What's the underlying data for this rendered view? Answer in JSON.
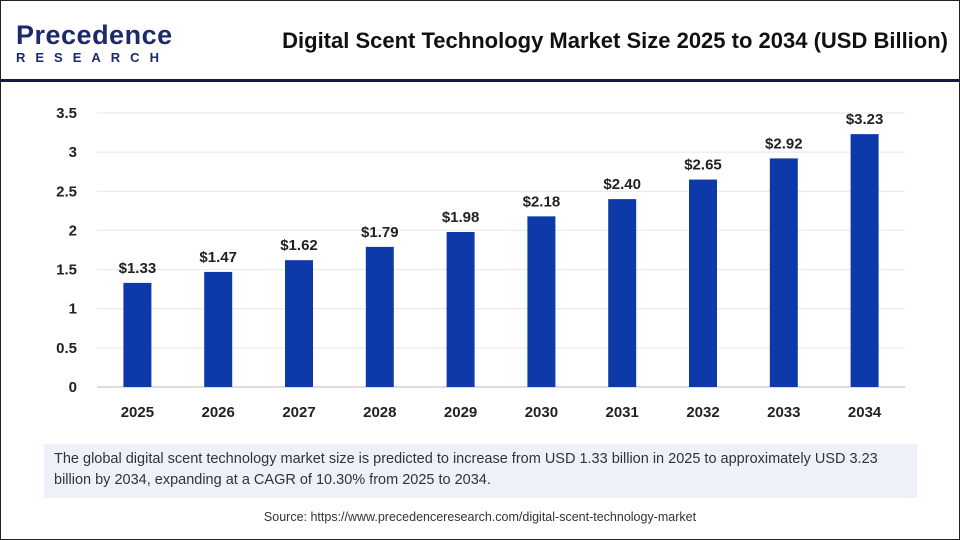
{
  "header": {
    "logo_text_1": "Precedence",
    "logo_text_2": "RESEARCH",
    "title": "Digital Scent Technology Market Size 2025 to 2034 (USD Billion)"
  },
  "chart_data": {
    "type": "bar",
    "title": "Digital Scent Technology Market Size 2025 to 2034 (USD Billion)",
    "categories": [
      "2025",
      "2026",
      "2027",
      "2028",
      "2029",
      "2030",
      "2031",
      "2032",
      "2033",
      "2034"
    ],
    "values": [
      1.33,
      1.47,
      1.62,
      1.79,
      1.98,
      2.18,
      2.4,
      2.65,
      2.92,
      3.23
    ],
    "data_labels": [
      "$1.33",
      "$1.47",
      "$1.62",
      "$1.79",
      "$1.98",
      "$2.18",
      "$2.40",
      "$2.65",
      "$2.92",
      "$3.23"
    ],
    "yticks": [
      "0",
      "0.5",
      "1",
      "1.5",
      "2",
      "2.5",
      "3",
      "3.5"
    ],
    "ylim": [
      0,
      3.5
    ],
    "bar_color": "#0e3aa9",
    "grid": true,
    "xlabel": "",
    "ylabel": ""
  },
  "description": "The global digital scent technology market size is predicted to increase from USD 1.33 billion in 2025 to approximately USD 3.23 billion by 2034, expanding at a CAGR of 10.30% from 2025 to 2034.",
  "source": "Source: https://www.precedenceresearch.com/digital-scent-technology-market"
}
